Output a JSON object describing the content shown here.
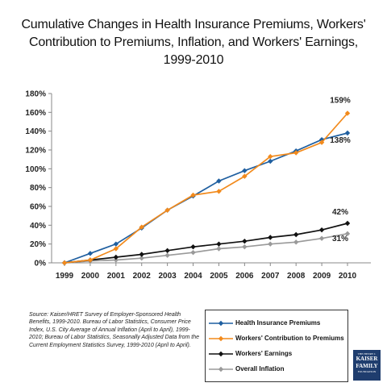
{
  "chart_data": {
    "type": "line",
    "title_lines": [
      "Cumulative Changes in Health Insurance Premiums, Workers'",
      "Contribution to Premiums, Inflation, and Workers' Earnings,",
      "1999-2010"
    ],
    "categories": [
      "1999",
      "2000",
      "2001",
      "2002",
      "2003",
      "2004",
      "2005",
      "2006",
      "2007",
      "2008",
      "2009",
      "2010"
    ],
    "ylim": [
      0,
      180
    ],
    "yticks": [
      0,
      20,
      40,
      60,
      80,
      100,
      120,
      140,
      160,
      180
    ],
    "ytick_labels": [
      "0%",
      "20%",
      "40%",
      "60%",
      "80%",
      "100%",
      "120%",
      "140%",
      "160%",
      "180%"
    ],
    "grid": false,
    "legend_position": "bottom-right",
    "series": [
      {
        "name": "Health Insurance Premiums",
        "color": "#1f5fa0",
        "marker": "diamond",
        "values": [
          0,
          10,
          20,
          37,
          56,
          71,
          87,
          98,
          108,
          119,
          131,
          138
        ],
        "end_label": "138%"
      },
      {
        "name": "Workers' Contribution to Premiums",
        "color": "#f28a1c",
        "marker": "diamond",
        "values": [
          0,
          3,
          15,
          38,
          56,
          72,
          76,
          92,
          113,
          117,
          128,
          159
        ],
        "end_label": "159%"
      },
      {
        "name": "Workers' Earnings",
        "color": "#111111",
        "marker": "diamond",
        "values": [
          0,
          3,
          6,
          9,
          13,
          17,
          20,
          23,
          27,
          30,
          35,
          42
        ],
        "end_label": "42%"
      },
      {
        "name": "Overall Inflation",
        "color": "#9a9a9a",
        "marker": "diamond",
        "values": [
          0,
          2,
          3,
          5,
          8,
          11,
          15,
          17,
          20,
          22,
          26,
          31
        ],
        "end_label": "31%"
      }
    ]
  },
  "source_note": "Source: Kaiser/HRET Survey of Employer-Sponsored Health Benefits, 1999-2010. Bureau of Labor Statistics, Consumer Price Index, U.S. City Average of Annual Inflation (April to April), 1999-2010; Bureau of Labor Statistics, Seasonally Adjusted Data from the Current Employment Statistics Survey, 1999-2010 (April to April).",
  "logo": {
    "line1": "THE HENRY J.",
    "line2": "KAISER",
    "line3": "FAMILY",
    "line4": "FOUNDATION"
  }
}
